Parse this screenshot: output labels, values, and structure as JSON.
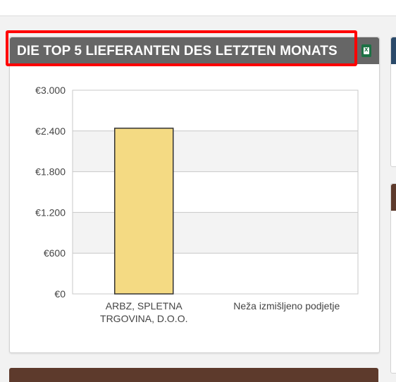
{
  "widget": {
    "title": "DIE TOP 5 LIEFERANTEN DES LETZTEN MONATS",
    "export_icon": "excel-export-icon"
  },
  "colors": {
    "header_bg": "#666666",
    "bar_fill": "#f4da83",
    "bar_stroke": "#333333",
    "highlight": "#ff0000",
    "band": "#f3f3f3"
  },
  "chart_data": {
    "type": "bar",
    "categories": [
      [
        "ARBZ, SPLETNA",
        "TRGOVINA, D.O.O."
      ],
      [
        "Neža izmišljeno podjetje"
      ]
    ],
    "values": [
      2440,
      0
    ],
    "ylim": [
      0,
      3000
    ],
    "yticks": [
      0,
      600,
      1200,
      1800,
      2400,
      3000
    ],
    "ytick_labels": [
      "€0",
      "€600",
      "€1.200",
      "€1.800",
      "€2.400",
      "€3.000"
    ],
    "grid": true,
    "alternating_bands": true,
    "legend": "none"
  }
}
